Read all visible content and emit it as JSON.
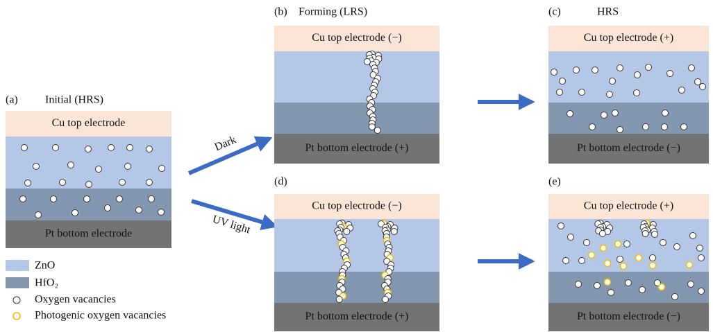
{
  "panels": [
    {
      "id": "(a)",
      "title": "Initial (HRS)",
      "top": "Cu top electrode",
      "bottom": "Pt bottom electrode"
    },
    {
      "id": "(b)",
      "title": "Forming (LRS)",
      "top": "Cu top electrode (−)",
      "bottom": "Pt bottom electrode (+)"
    },
    {
      "id": "(c)",
      "title": "HRS",
      "top": "Cu top electrode (+)",
      "bottom": "Pt bottom electrode (−)"
    },
    {
      "id": "(d)",
      "top": "Cu top electrode (−)",
      "bottom": "Pt bottom electrode (+)"
    },
    {
      "id": "(e)",
      "top": "Cu top electrode (+)",
      "bottom": "Pt bottom electrode (−)"
    }
  ],
  "arrows": [
    "Dark",
    "UV light"
  ],
  "legend": [
    "ZnO",
    "HfO₂",
    "Oxygen vacancies",
    "Photogenic oxygen vacancies"
  ]
}
